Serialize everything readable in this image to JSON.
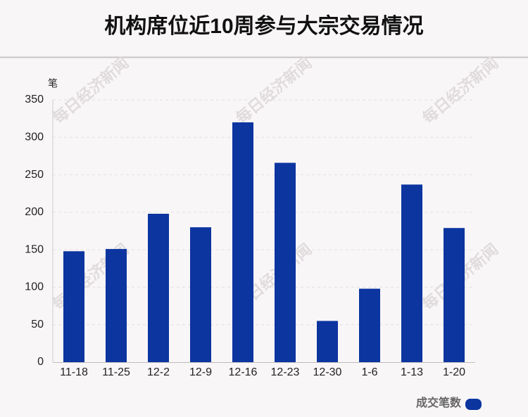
{
  "chart_data": {
    "type": "bar",
    "title": "机构席位近10周参与大宗交易情况",
    "y_unit": "笔",
    "categories": [
      "11-18",
      "11-25",
      "12-2",
      "12-9",
      "12-16",
      "12-23",
      "12-30",
      "1-6",
      "1-13",
      "1-20"
    ],
    "series": [
      {
        "name": "成交笔数",
        "color": "#0c35a0",
        "values": [
          148,
          151,
          198,
          180,
          320,
          266,
          55,
          98,
          237,
          179
        ]
      }
    ],
    "ylim": [
      0,
      350
    ],
    "yticks": [
      0,
      50,
      100,
      150,
      200,
      250,
      300,
      350
    ],
    "grid": true,
    "legend": "bottom-right",
    "watermark": "每日经济新闻"
  }
}
